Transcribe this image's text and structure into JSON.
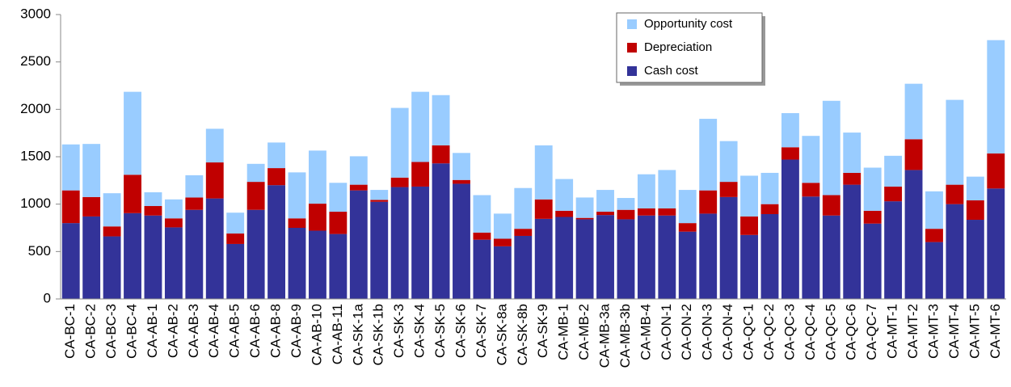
{
  "chart_data": {
    "type": "stacked_bar",
    "categories": [
      "CA-BC-1",
      "CA-BC-2",
      "CA-BC-3",
      "CA-BC-4",
      "CA-AB-1",
      "CA-AB-2",
      "CA-AB-3",
      "CA-AB-4",
      "CA-AB-5",
      "CA-AB-6",
      "CA-AB-8",
      "CA-AB-9",
      "CA-AB-10",
      "CA-AB-11",
      "CA-SK-1a",
      "CA-SK-1b",
      "CA-SK-3",
      "CA-SK-4",
      "CA-SK-5",
      "CA-SK-6",
      "CA-SK-7",
      "CA-SK-8a",
      "CA-SK-8b",
      "CA-SK-9",
      "CA-MB-1",
      "CA-MB-2",
      "CA-MB-3a",
      "CA-MB-3b",
      "CA-MB-4",
      "CA-ON-1",
      "CA-ON-2",
      "CA-ON-3",
      "CA-ON-4",
      "CA-QC-1",
      "CA-QC-2",
      "CA-QC-3",
      "CA-QC-4",
      "CA-QC-5",
      "CA-QC-6",
      "CA-QC-7",
      "CA-MT-1",
      "CA-MT-2",
      "CA-MT-3",
      "CA-MT-4",
      "CA-MT-5",
      "CA-MT-6"
    ],
    "series": [
      {
        "name": "Cash cost",
        "color": "#333399",
        "values": [
          800,
          870,
          660,
          905,
          880,
          755,
          940,
          1060,
          580,
          940,
          1200,
          750,
          720,
          685,
          1145,
          1025,
          1180,
          1185,
          1430,
          1215,
          625,
          555,
          665,
          845,
          865,
          840,
          885,
          840,
          880,
          880,
          710,
          900,
          1075,
          675,
          895,
          1470,
          1080,
          880,
          1205,
          795,
          1030,
          1360,
          600,
          1000,
          835,
          1165
        ]
      },
      {
        "name": "Depreciation",
        "color": "#c00000",
        "values": [
          345,
          205,
          105,
          405,
          100,
          95,
          130,
          380,
          110,
          295,
          180,
          100,
          285,
          235,
          60,
          20,
          100,
          260,
          190,
          40,
          75,
          80,
          75,
          205,
          65,
          15,
          35,
          100,
          75,
          75,
          90,
          245,
          160,
          195,
          105,
          130,
          145,
          215,
          125,
          135,
          155,
          325,
          140,
          205,
          205,
          370
        ]
      },
      {
        "name": "Opportunity cost",
        "color": "#99ccff",
        "values": [
          485,
          560,
          350,
          875,
          145,
          200,
          235,
          355,
          220,
          190,
          270,
          485,
          560,
          305,
          300,
          105,
          735,
          740,
          530,
          285,
          395,
          265,
          430,
          570,
          335,
          215,
          230,
          125,
          360,
          405,
          350,
          755,
          430,
          430,
          330,
          360,
          495,
          995,
          425,
          455,
          325,
          585,
          395,
          895,
          250,
          1195
        ]
      }
    ],
    "ylim": [
      0,
      3000
    ],
    "yticks": [
      0,
      500,
      1000,
      1500,
      2000,
      2500,
      3000
    ],
    "grid": false
  }
}
